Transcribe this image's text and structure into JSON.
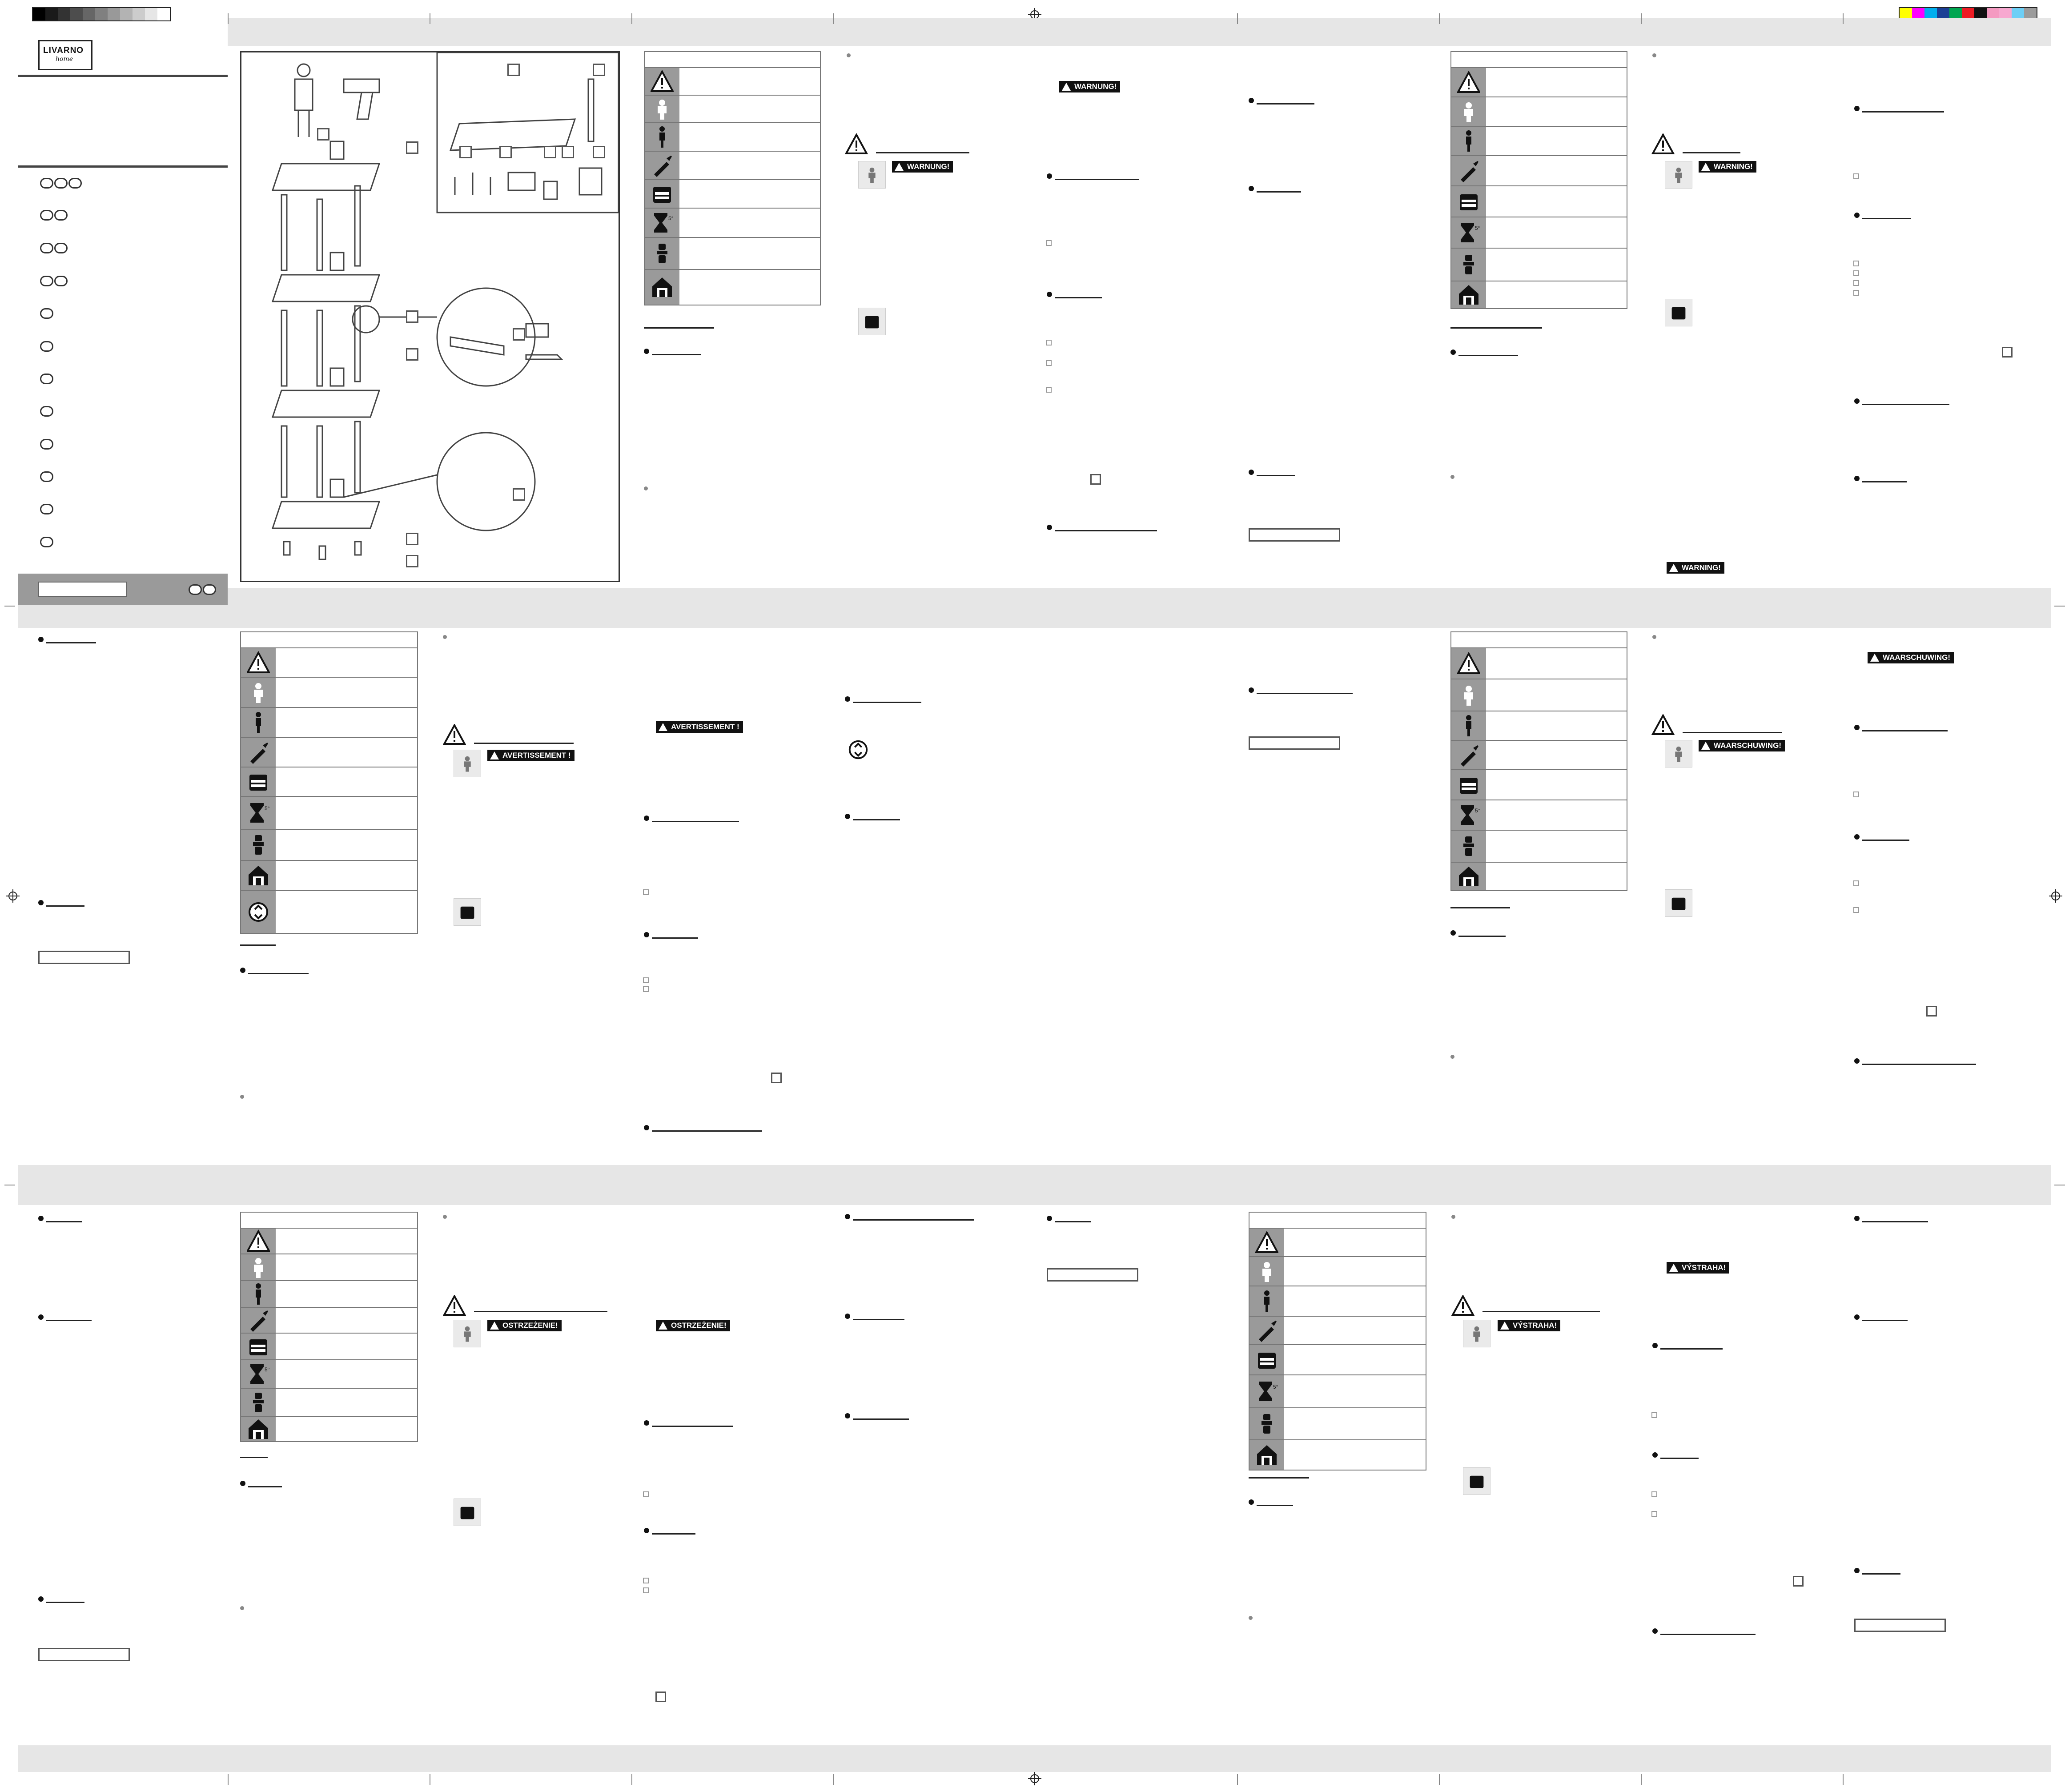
{
  "brand": {
    "name_top": "LIVARNO",
    "name_sub": "home"
  },
  "warnings": {
    "de": "WARNUNG!",
    "en": "WARNING!",
    "fr": "AVERTISSEMENT !",
    "nl": "WAARSCHUWING!",
    "pl": "OSTRZEŻENIE!",
    "cz": "VÝSTRAHA!"
  },
  "icons": [
    "warning-icon",
    "child-icon",
    "adult-icon",
    "tool-icon",
    "weight-icon",
    "hourglass-icon",
    "fixing-icon",
    "indoor-icon",
    "recycle-icon"
  ],
  "colors": {
    "band": "#e6e6e6",
    "icon_cell": "#9a9a9a",
    "badge": "#111111"
  },
  "print_marks": {
    "grey_scale": [
      "#000000",
      "#1a1a1a",
      "#333333",
      "#4d4d4d",
      "#666666",
      "#808080",
      "#999999",
      "#b3b3b3",
      "#cccccc",
      "#e6e6e6",
      "#ffffff"
    ],
    "color_bar": [
      "#ffff00",
      "#ff00ff",
      "#00aeef",
      "#1b3f95",
      "#00a651",
      "#ed1c24",
      "#111111",
      "#f49ac1",
      "#f7a8d0",
      "#6dcff6",
      "#9b9b9b"
    ]
  }
}
